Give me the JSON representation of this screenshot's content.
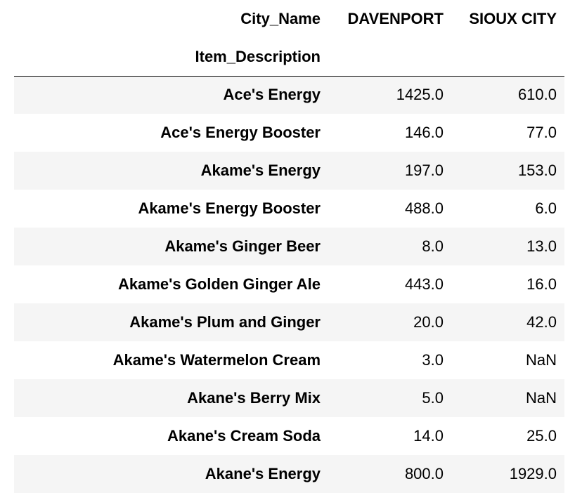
{
  "table": {
    "columns_name": "City_Name",
    "index_name": "Item_Description",
    "columns": [
      "DAVENPORT",
      "SIOUX CITY"
    ],
    "rows": [
      {
        "label": "Ace's Energy",
        "values": [
          "1425.0",
          "610.0"
        ]
      },
      {
        "label": "Ace's Energy Booster",
        "values": [
          "146.0",
          "77.0"
        ]
      },
      {
        "label": "Akame's Energy",
        "values": [
          "197.0",
          "153.0"
        ]
      },
      {
        "label": "Akame's Energy Booster",
        "values": [
          "488.0",
          "6.0"
        ]
      },
      {
        "label": "Akame's Ginger Beer",
        "values": [
          "8.0",
          "13.0"
        ]
      },
      {
        "label": "Akame's Golden Ginger Ale",
        "values": [
          "443.0",
          "16.0"
        ]
      },
      {
        "label": "Akame's Plum and Ginger",
        "values": [
          "20.0",
          "42.0"
        ]
      },
      {
        "label": "Akame's Watermelon Cream",
        "values": [
          "3.0",
          "NaN"
        ]
      },
      {
        "label": "Akane's Berry Mix",
        "values": [
          "5.0",
          "NaN"
        ]
      },
      {
        "label": "Akane's Cream Soda",
        "values": [
          "14.0",
          "25.0"
        ]
      },
      {
        "label": "Akane's Energy",
        "values": [
          "800.0",
          "1929.0"
        ]
      }
    ]
  }
}
